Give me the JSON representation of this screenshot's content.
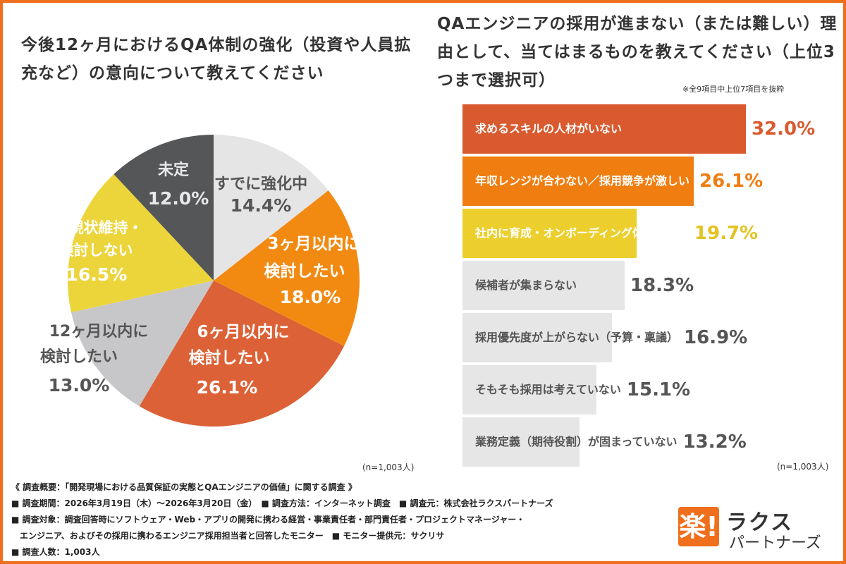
{
  "pie": {
    "title": "今後12ヶ月におけるQA体制の強化（投資や人員拡充など）の意向について教えてください",
    "n_note": "(n=1,003人)",
    "chart_data": {
      "type": "pie",
      "title": "今後12ヶ月におけるQA体制の強化（投資や人員拡充など）の意向について教えてください",
      "slices": [
        {
          "name": "すでに強化中",
          "value": 14.4,
          "label": "14.4%",
          "color": "#e6e5e6",
          "text_color": "#555555"
        },
        {
          "name": "3ヶ月以内に検討したい",
          "value": 18.0,
          "label": "18.0%",
          "color": "#f28a12",
          "text_color": "#ffffff"
        },
        {
          "name": "6ヶ月以内に検討したい",
          "value": 26.1,
          "label": "26.1%",
          "color": "#dc6136",
          "text_color": "#ffffff"
        },
        {
          "name": "12ヶ月以内に検討したい",
          "value": 13.0,
          "label": "13.0%",
          "color": "#c7c7c9",
          "text_color": "#555555"
        },
        {
          "name": "現状維持・検討しない",
          "value": 16.5,
          "label": "16.5%",
          "color": "#ecd53b",
          "text_color": "#ffffff"
        },
        {
          "name": "未定",
          "value": 12.0,
          "label": "12.0%",
          "color": "#555658",
          "text_color": "#e8e8e8"
        }
      ]
    }
  },
  "bars": {
    "title": "QAエンジニアの採用が進まない（または難しい）理由として、当てはまるものを教えてください（上位3つまで選択可）",
    "note": "※全9項目中上位7項目を抜粋",
    "n_note": "(n=1,003人)",
    "chart_data": {
      "type": "bar",
      "orientation": "horizontal",
      "categories": [
        "求めるスキルの人材がいない",
        "年収レンジが合わない／採用競争が激しい",
        "社内に育成・オンボーディング体制がない",
        "候補者が集まらない",
        "採用優先度が上がらない（予算・稟議）",
        "そもそも採用は考えていない",
        "業務定義（期待役割）が固まっていない"
      ],
      "values": [
        32.0,
        26.1,
        19.7,
        18.3,
        16.9,
        15.1,
        13.2
      ],
      "value_labels": [
        "32.0%",
        "26.1%",
        "19.7%",
        "18.3%",
        "16.9%",
        "15.1%",
        "13.2%"
      ],
      "colors": [
        "#d95a2f",
        "#f07d10",
        "#eccf2c",
        "#e6e6e6",
        "#e6e6e6",
        "#e6e6e6",
        "#e6e6e6"
      ],
      "label_colors": [
        "#ffffff",
        "#ffffff",
        "#ffffff",
        "#555555",
        "#555555",
        "#555555",
        "#555555"
      ],
      "value_colors": [
        "#d95a2f",
        "#f07d10",
        "#e3c221",
        "#555555",
        "#555555",
        "#555555",
        "#555555"
      ],
      "xlim": [
        0,
        32.0
      ]
    }
  },
  "footer": {
    "lines": [
      "《 調査概要：「開発現場における品質保証の実態とQAエンジニアの価値」に関する調査 》",
      "■ 調査期間：2026年3月19日（木）〜2026年3月20日（金）　■ 調査方法：インターネット調査　■ 調査元：株式会社ラクスパートナーズ",
      "■ 調査対象：調査回答時にソフトウェア・Web・アプリの開発に携わる経営・事業責任者・部門責任者・プロジェクトマネージャー・",
      "　エンジニア、およびその採用に携わるエンジニア採用担当者と回答したモニター　■ モニター提供元：サクリサ",
      "■ 調査人数：1,003人"
    ]
  },
  "logo": {
    "mark": "楽!",
    "line1": "ラクス",
    "line2": "パートナーズ"
  }
}
